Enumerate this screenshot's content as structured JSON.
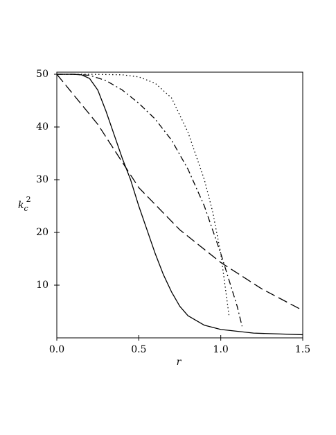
{
  "chart_data": {
    "type": "line",
    "x_label": "r",
    "y_label": {
      "base": "k",
      "sub": "c",
      "sup": "2"
    },
    "xlim": [
      0,
      1.5
    ],
    "ylim": [
      0,
      50.4
    ],
    "xticks": [
      {
        "value": 0,
        "label": "0.0"
      },
      {
        "value": 0.5,
        "label": "0.5"
      },
      {
        "value": 1,
        "label": "1.0"
      },
      {
        "value": 1.5,
        "label": "1.5"
      }
    ],
    "yticks": [
      10,
      20,
      30,
      40,
      50
    ],
    "series": [
      {
        "color": "#000000",
        "dash": "solid",
        "x": [
          0,
          0.1,
          0.15,
          0.2,
          0.25,
          0.3,
          0.35,
          0.4,
          0.45,
          0.5,
          0.55,
          0.6,
          0.65,
          0.7,
          0.75,
          0.8,
          0.9,
          1.0,
          1.2,
          1.5
        ],
        "values": [
          50,
          50,
          49.9,
          49.2,
          47,
          43,
          38.5,
          34,
          30,
          25,
          20.5,
          16,
          12,
          8.7,
          6,
          4.2,
          2.4,
          1.6,
          0.9,
          0.6
        ]
      },
      {
        "color": "#000000",
        "dash": "dashed",
        "x": [
          0,
          0.25,
          0.5,
          0.75,
          1.0,
          1.25,
          1.5
        ],
        "values": [
          50,
          40.5,
          28.5,
          20.5,
          14.3,
          9.3,
          5.2
        ]
      },
      {
        "color": "#000000",
        "dash": "dashdot",
        "x": [
          0,
          0.1,
          0.2,
          0.3,
          0.4,
          0.5,
          0.6,
          0.7,
          0.8,
          0.9,
          1.0,
          1.05,
          1.1,
          1.13
        ],
        "values": [
          50,
          50,
          49.8,
          48.8,
          47,
          44.5,
          41.5,
          37.5,
          32,
          25,
          16,
          11,
          6,
          2.2
        ]
      },
      {
        "color": "#000000",
        "dash": "dotted",
        "x": [
          0,
          0.2,
          0.4,
          0.5,
          0.6,
          0.7,
          0.8,
          0.9,
          0.95,
          1.0,
          1.03,
          1.05
        ],
        "values": [
          50,
          50,
          49.9,
          49.5,
          48.3,
          45.5,
          39,
          30,
          24,
          16,
          9,
          4.3
        ]
      }
    ]
  }
}
